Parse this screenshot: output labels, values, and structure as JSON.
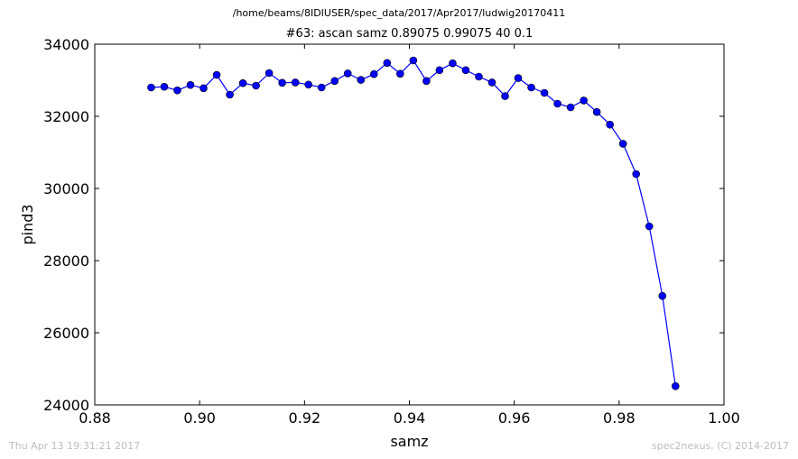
{
  "header": {
    "path": "/home/beams/8IDIUSER/spec_data/2017/Apr2017/ludwig20170411"
  },
  "footer": {
    "timestamp": "Thu Apr 13 19:31:21 2017",
    "credit": "spec2nexus, (C) 2014-2017"
  },
  "colors": {
    "series": "#0000ff",
    "marker_edge": "#000000",
    "axes": "#000000",
    "footer_text": "#bdbdbd"
  },
  "chart_data": {
    "type": "line",
    "title": "#63: ascan  samz 0.89075 0.99075  40 0.1",
    "xlabel": "samz",
    "ylabel": "pind3",
    "xlim": [
      0.88,
      1.0
    ],
    "ylim": [
      24000,
      34000
    ],
    "xticks": [
      "0.88",
      "0.90",
      "0.92",
      "0.94",
      "0.96",
      "0.98",
      "1.00"
    ],
    "yticks": [
      "24000",
      "26000",
      "28000",
      "30000",
      "32000",
      "34000"
    ],
    "grid": false,
    "marker": "circle",
    "series": [
      {
        "x": [
          0.89075,
          0.89325,
          0.89575,
          0.89825,
          0.90075,
          0.90325,
          0.90575,
          0.90825,
          0.91075,
          0.91325,
          0.91575,
          0.91825,
          0.92075,
          0.92325,
          0.92575,
          0.92825,
          0.93075,
          0.93325,
          0.93575,
          0.93825,
          0.94075,
          0.94325,
          0.94575,
          0.94825,
          0.95075,
          0.95325,
          0.95575,
          0.95825,
          0.96075,
          0.96325,
          0.96575,
          0.96825,
          0.97075,
          0.97325,
          0.97575,
          0.97825,
          0.98075,
          0.98325,
          0.98575,
          0.98825,
          0.99075
        ],
        "y": [
          32800,
          32820,
          32720,
          32870,
          32780,
          33150,
          32600,
          32920,
          32850,
          33200,
          32930,
          32940,
          32880,
          32800,
          32980,
          33190,
          33010,
          33170,
          33480,
          33180,
          33550,
          32980,
          33280,
          33470,
          33280,
          33100,
          32940,
          32560,
          33060,
          32800,
          32650,
          32350,
          32250,
          32440,
          32120,
          31770,
          31240,
          30400,
          28950,
          27020,
          24520
        ]
      }
    ]
  }
}
